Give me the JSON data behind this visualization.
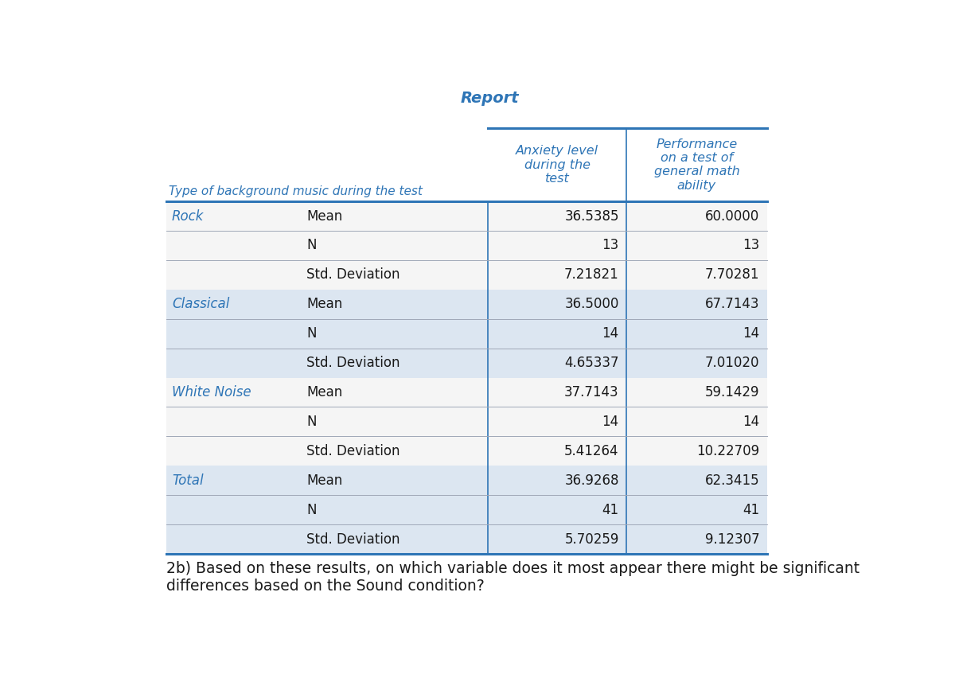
{
  "title": "Report",
  "col_header_1": "Anxiety level\nduring the\ntest",
  "col_header_2": "Performance\non a test of\ngeneral math\nability",
  "row_header_label": "Type of background music during the test",
  "groups": [
    {
      "name": "Rock",
      "rows": [
        {
          "stat": "Mean",
          "anxiety": "36.5385",
          "performance": "60.0000"
        },
        {
          "stat": "N",
          "anxiety": "13",
          "performance": "13"
        },
        {
          "stat": "Std. Deviation",
          "anxiety": "7.21821",
          "performance": "7.70281"
        }
      ]
    },
    {
      "name": "Classical",
      "rows": [
        {
          "stat": "Mean",
          "anxiety": "36.5000",
          "performance": "67.7143"
        },
        {
          "stat": "N",
          "anxiety": "14",
          "performance": "14"
        },
        {
          "stat": "Std. Deviation",
          "anxiety": "4.65337",
          "performance": "7.01020"
        }
      ]
    },
    {
      "name": "White Noise",
      "rows": [
        {
          "stat": "Mean",
          "anxiety": "37.7143",
          "performance": "59.1429"
        },
        {
          "stat": "N",
          "anxiety": "14",
          "performance": "14"
        },
        {
          "stat": "Std. Deviation",
          "anxiety": "5.41264",
          "performance": "10.22709"
        }
      ]
    },
    {
      "name": "Total",
      "rows": [
        {
          "stat": "Mean",
          "anxiety": "36.9268",
          "performance": "62.3415"
        },
        {
          "stat": "N",
          "anxiety": "41",
          "performance": "41"
        },
        {
          "stat": "Std. Deviation",
          "anxiety": "5.70259",
          "performance": "9.12307"
        }
      ]
    }
  ],
  "question": "2b) Based on these results, on which variable does it most appear there might be significant\ndifferences based on the Sound condition?",
  "bg_color": "#ffffff",
  "group_name_color": "#2e75b6",
  "stat_name_color": "#1a1a1a",
  "header_text_color": "#2e75b6",
  "cell_text_color": "#1a1a1a",
  "row_alt_color": "#dce6f1",
  "row_white_color": "#f5f5f5",
  "title_color": "#2e75b6",
  "border_color": "#2e75b6",
  "divider_color": "#a0a8b8",
  "font_size_table": 12.0,
  "font_size_header": 11.5,
  "font_size_question": 13.5
}
